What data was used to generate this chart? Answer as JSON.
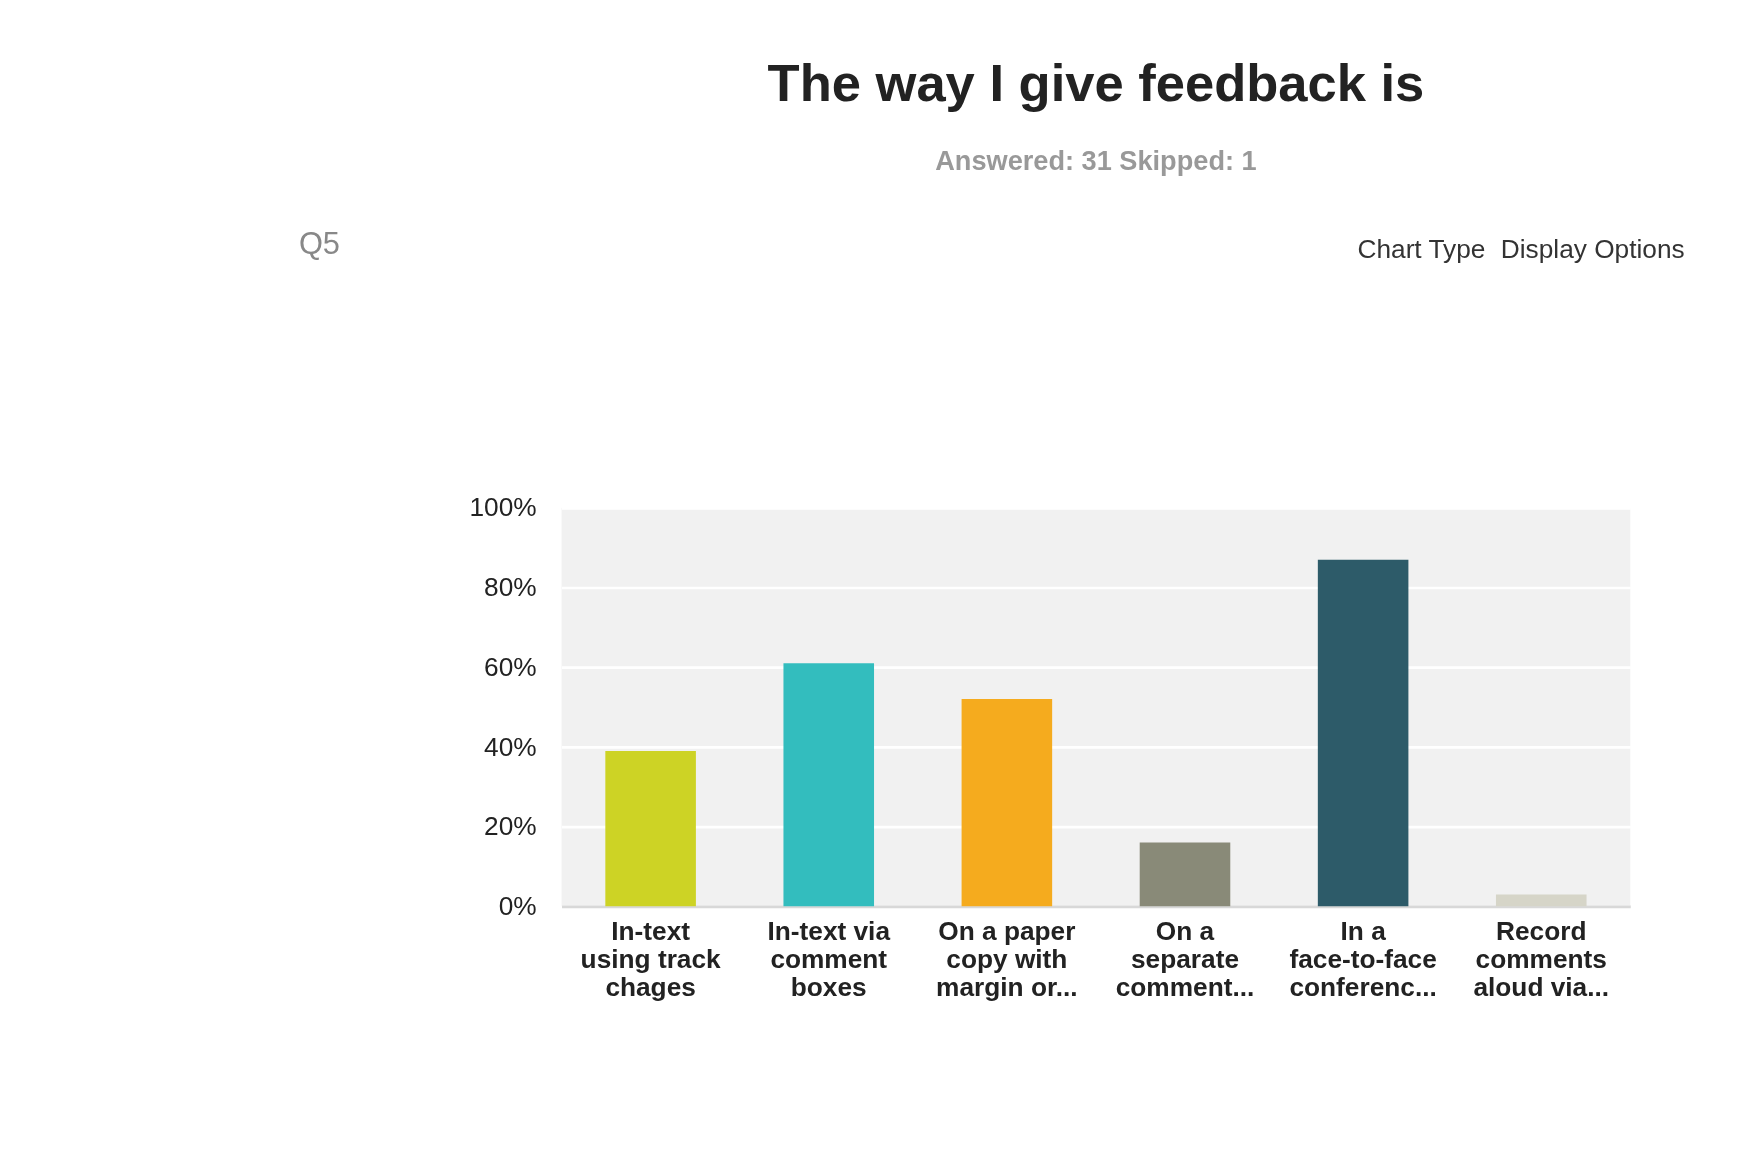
{
  "chart_data": {
    "type": "bar",
    "title": "The way I give feedback is",
    "subtitle": "Answered: 31    Skipped: 1",
    "annotations": [
      "Q5",
      "Chart Type",
      "Display Options"
    ],
    "categories": [
      "In-text using track chages",
      "In-text via comment boxes",
      "On a paper copy with margin or...",
      "On a separate comment...",
      "In a face-to-face conferenc...",
      "Record comments aloud via..."
    ],
    "values": [
      39,
      61,
      52,
      16,
      87,
      3
    ],
    "colors": [
      "#cdd325",
      "#33bdbe",
      "#f5ab1e",
      "#898a78",
      "#2d5b69",
      "#d6d5c8"
    ],
    "ylim": [
      0,
      100
    ],
    "yticks": [
      {
        "value": 0,
        "label": "0%"
      },
      {
        "value": 20,
        "label": "20%"
      },
      {
        "value": 40,
        "label": "40%"
      },
      {
        "value": 60,
        "label": "60%"
      },
      {
        "value": 80,
        "label": "80%"
      },
      {
        "value": 100,
        "label": "100%"
      }
    ],
    "grid": "y"
  }
}
